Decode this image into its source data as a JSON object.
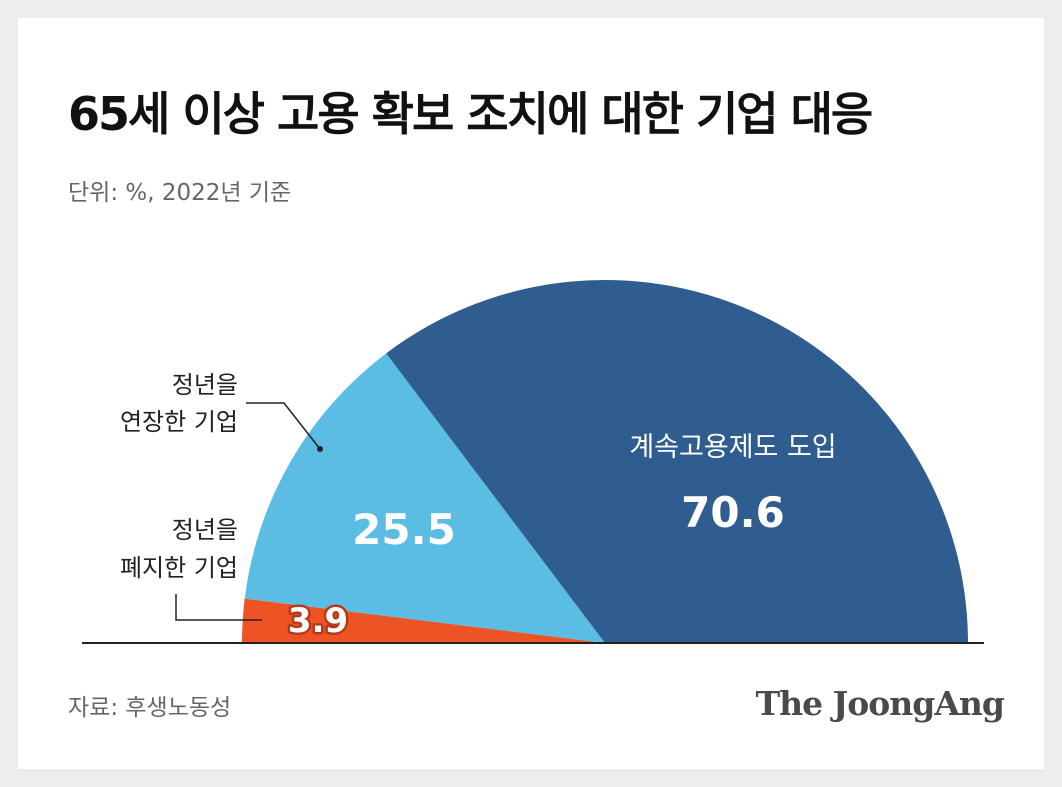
{
  "header": {
    "title": "65세 이상 고용 확보 조치에 대한 기업 대응",
    "unit": "단위: %, 2022년 기준"
  },
  "footer": {
    "source": "자료: 후생노동성",
    "brand": "The JoongAng"
  },
  "colors": {
    "continuous": "#2f5d90",
    "extended": "#5bbce4",
    "abolished": "#ee5324",
    "baseline": "#222222"
  },
  "chart_data": {
    "type": "pie",
    "shape": "semicircle",
    "unit": "%",
    "slices": [
      {
        "label": "정년을 폐지한 기업",
        "label_lines": [
          "정년을",
          "폐지한 기업"
        ],
        "value": 3.9,
        "value_label": "3.9",
        "color": "#ee5324"
      },
      {
        "label": "정년을 연장한 기업",
        "label_lines": [
          "정년을",
          "연장한 기업"
        ],
        "value": 25.5,
        "value_label": "25.5",
        "color": "#5bbce4"
      },
      {
        "label": "계속고용제도 도입",
        "label_lines": [
          "계속고용제도 도입"
        ],
        "value": 70.6,
        "value_label": "70.6",
        "color": "#2f5d90"
      }
    ]
  }
}
